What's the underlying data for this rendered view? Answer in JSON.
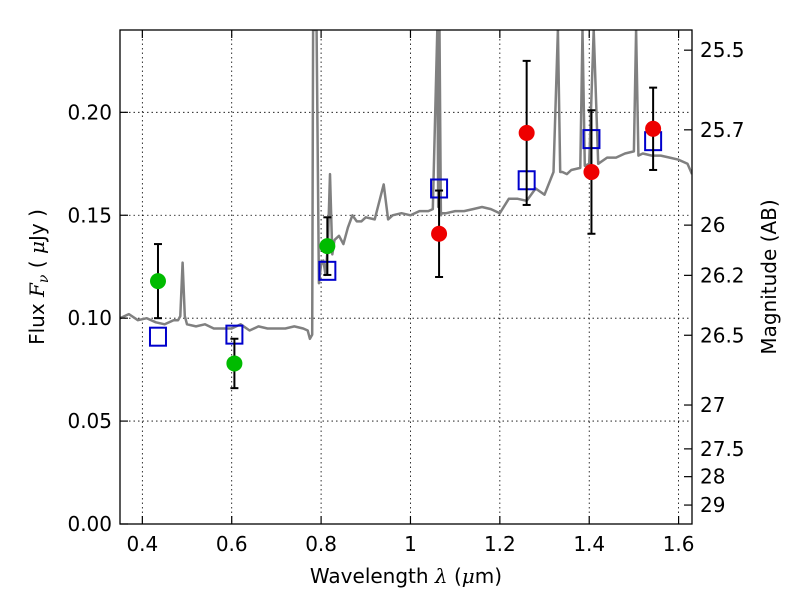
{
  "chart_data": {
    "type": "scatter",
    "xlabel": "Wavelength  λ (μm)",
    "ylabel": "Flux  Fν  ( μJy )",
    "y2label": "Magnitude (AB)",
    "xlim": [
      0.35,
      1.63
    ],
    "ylim": [
      0.0,
      0.24
    ],
    "x_ticks": [
      0.4,
      0.6,
      0.8,
      1.0,
      1.2,
      1.4,
      1.6
    ],
    "x_tick_labels": [
      "0.4",
      "0.6",
      "0.8",
      "1",
      "1.2",
      "1.4",
      "1.6"
    ],
    "y_ticks": [
      0.0,
      0.05,
      0.1,
      0.15,
      0.2
    ],
    "y_tick_labels": [
      "0.00",
      "0.05",
      "0.10",
      "0.15",
      "0.20"
    ],
    "y2_ticks": [
      {
        "label": "25.5",
        "flux": 0.2302
      },
      {
        "label": "25.7",
        "flux": 0.1915
      },
      {
        "label": "26",
        "flux": 0.1452
      },
      {
        "label": "26.2",
        "flux": 0.1208
      },
      {
        "label": "26.5",
        "flux": 0.0917
      },
      {
        "label": "27",
        "flux": 0.0578
      },
      {
        "label": "27.5",
        "flux": 0.0365
      },
      {
        "label": "28",
        "flux": 0.023
      },
      {
        "label": "29",
        "flux": 0.0092
      }
    ],
    "grid": true,
    "series": [
      {
        "name": "model_spectrum",
        "style": "line",
        "color": "#808080",
        "x": [
          0.35,
          0.37,
          0.39,
          0.41,
          0.43,
          0.45,
          0.47,
          0.48,
          0.485,
          0.49,
          0.495,
          0.5,
          0.52,
          0.54,
          0.56,
          0.58,
          0.6,
          0.62,
          0.64,
          0.66,
          0.68,
          0.7,
          0.72,
          0.74,
          0.76,
          0.77,
          0.775,
          0.78,
          0.782,
          0.785,
          0.79,
          0.795,
          0.8,
          0.805,
          0.81,
          0.815,
          0.82,
          0.825,
          0.83,
          0.84,
          0.85,
          0.86,
          0.87,
          0.88,
          0.89,
          0.9,
          0.92,
          0.94,
          0.95,
          0.96,
          0.98,
          1.0,
          1.02,
          1.04,
          1.05,
          1.06,
          1.062,
          1.065,
          1.068,
          1.07,
          1.08,
          1.1,
          1.12,
          1.14,
          1.16,
          1.18,
          1.2,
          1.22,
          1.24,
          1.26,
          1.28,
          1.3,
          1.32,
          1.33,
          1.335,
          1.34,
          1.35,
          1.36,
          1.38,
          1.385,
          1.39,
          1.4,
          1.41,
          1.42,
          1.44,
          1.46,
          1.48,
          1.5,
          1.505,
          1.51,
          1.52,
          1.54,
          1.56,
          1.58,
          1.6,
          1.62,
          1.63
        ],
        "y": [
          0.1,
          0.102,
          0.099,
          0.1,
          0.098,
          0.097,
          0.099,
          0.099,
          0.101,
          0.127,
          0.101,
          0.097,
          0.096,
          0.097,
          0.095,
          0.095,
          0.095,
          0.097,
          0.094,
          0.096,
          0.095,
          0.095,
          0.095,
          0.096,
          0.095,
          0.094,
          0.09,
          0.092,
          0.24,
          0.24,
          0.24,
          0.117,
          0.126,
          0.128,
          0.121,
          0.135,
          0.17,
          0.131,
          0.138,
          0.14,
          0.136,
          0.144,
          0.15,
          0.147,
          0.147,
          0.149,
          0.148,
          0.165,
          0.148,
          0.15,
          0.151,
          0.15,
          0.152,
          0.152,
          0.153,
          0.24,
          0.154,
          0.24,
          0.15,
          0.151,
          0.151,
          0.152,
          0.152,
          0.153,
          0.154,
          0.153,
          0.151,
          0.158,
          0.158,
          0.157,
          0.163,
          0.16,
          0.171,
          0.24,
          0.171,
          0.171,
          0.17,
          0.172,
          0.173,
          0.24,
          0.174,
          0.175,
          0.24,
          0.175,
          0.178,
          0.178,
          0.18,
          0.181,
          0.24,
          0.179,
          0.18,
          0.179,
          0.179,
          0.178,
          0.177,
          0.175,
          0.17
        ]
      },
      {
        "name": "model_photometry",
        "style": "open-square",
        "color": "#0000cc",
        "x": [
          0.435,
          0.606,
          0.814,
          1.064,
          1.26,
          1.405,
          1.543
        ],
        "y": [
          0.091,
          0.092,
          0.123,
          0.163,
          0.167,
          0.187,
          0.186
        ]
      },
      {
        "name": "observed_optical",
        "style": "filled-circle",
        "color": "#00bb00",
        "x": [
          0.435,
          0.606,
          0.814
        ],
        "y": [
          0.118,
          0.078,
          0.135
        ],
        "err": [
          0.018,
          0.012,
          0.014
        ]
      },
      {
        "name": "observed_nir",
        "style": "filled-circle",
        "color": "#ee0000",
        "x": [
          1.064,
          1.26,
          1.405,
          1.543
        ],
        "y": [
          0.141,
          0.19,
          0.171,
          0.192
        ],
        "err": [
          0.021,
          0.035,
          0.03,
          0.02
        ]
      }
    ]
  }
}
